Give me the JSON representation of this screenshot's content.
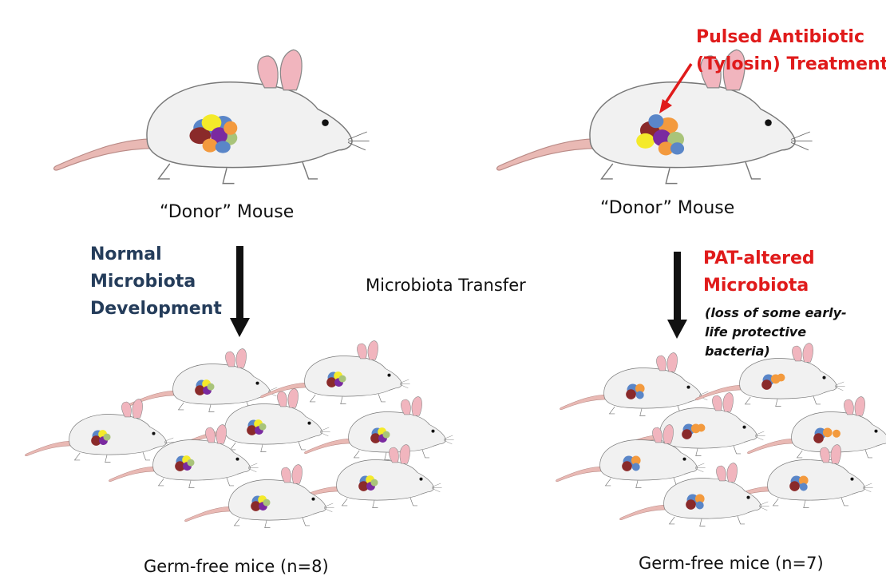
{
  "left": {
    "donor_label": "“Donor” Mouse",
    "arrow_label_lines": [
      "Normal",
      "Microbiota",
      "Development"
    ],
    "recipients_label": "Germ-free mice (n=8)"
  },
  "right": {
    "treatment_label_lines": [
      "Pulsed Antibiotic",
      "(Tylosin) Treatment"
    ],
    "donor_label": "“Donor” Mouse",
    "arrow_label_lines": [
      "PAT-altered",
      "Microbiota"
    ],
    "note_lines": [
      "(loss of some early-",
      "life protective",
      "bacteria)"
    ],
    "recipients_label": "Germ-free mice (n=7)"
  },
  "center_label": "Microbiota Transfer",
  "colors": {
    "blue_text": "#243c5a",
    "red_text": "#e01b1b",
    "mouse_body": "#f1f1f1",
    "ear_pink": "#f1b5be",
    "tail_pink": "#e9b9b4",
    "microbe_blue": "#5a86c8",
    "microbe_red": "#8a2a2a",
    "microbe_yellow": "#f4ea2a",
    "microbe_purple": "#7a2aa0",
    "microbe_orange": "#f39a3e",
    "microbe_green": "#a9c47a"
  }
}
